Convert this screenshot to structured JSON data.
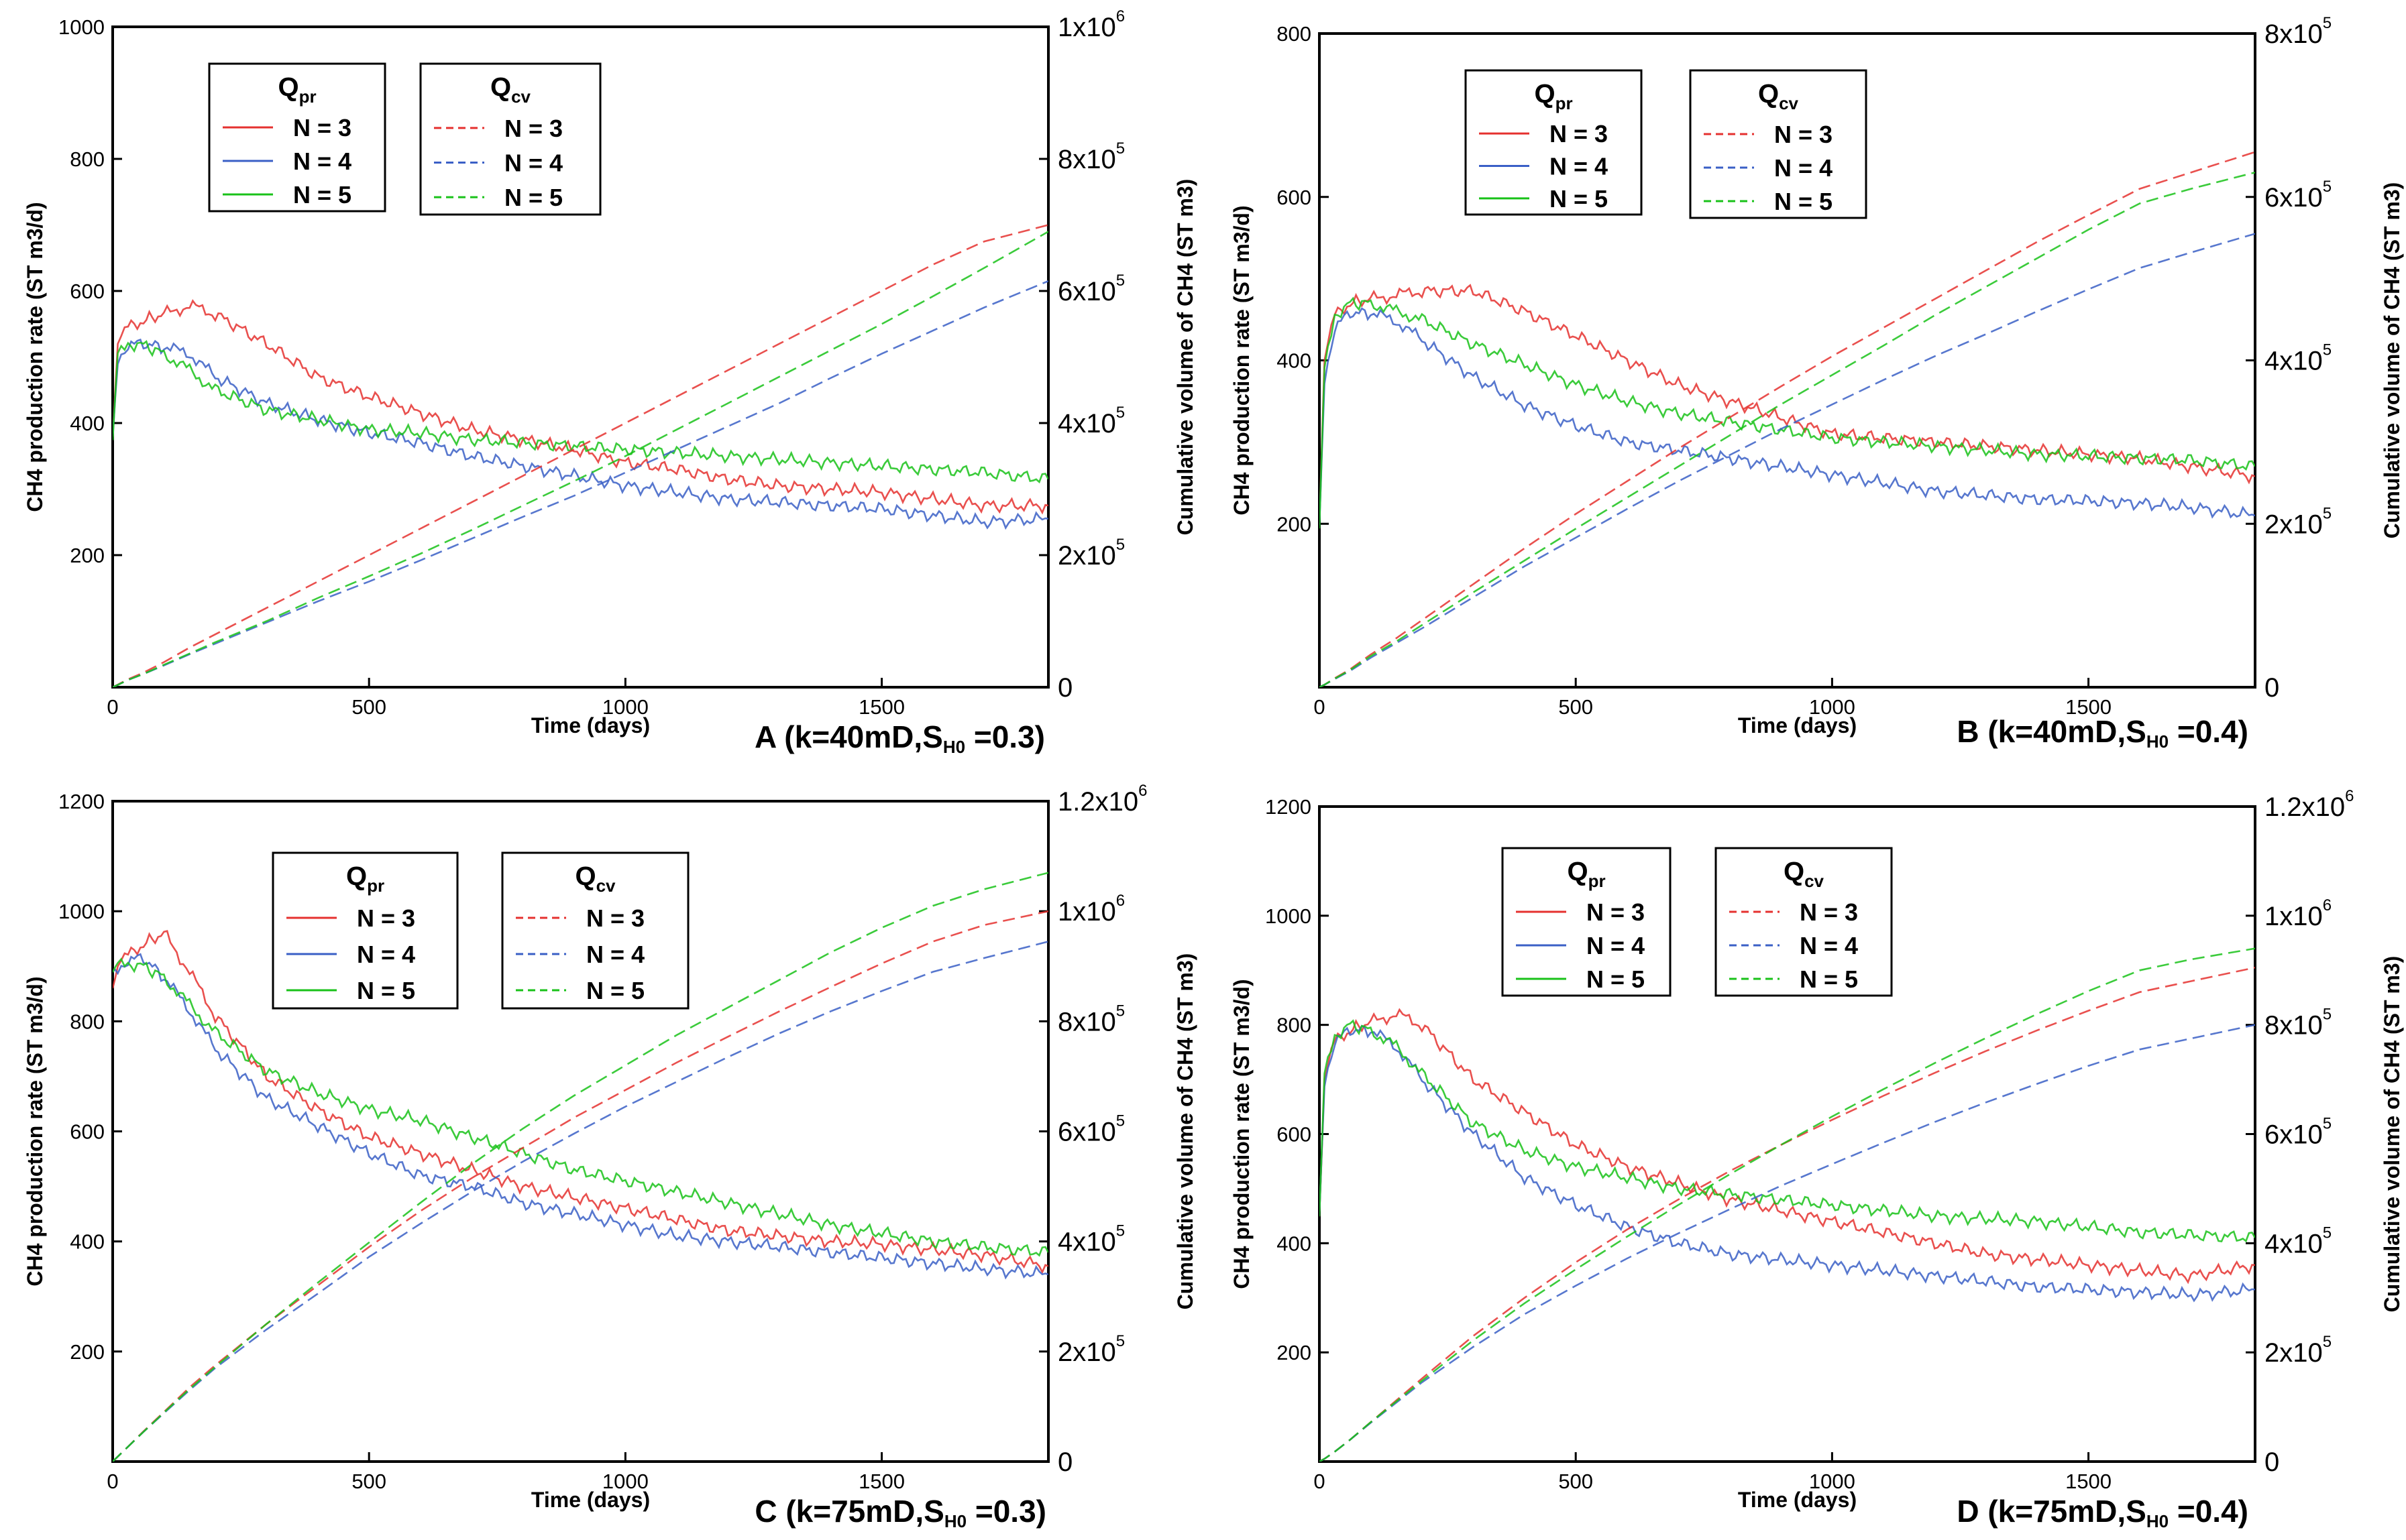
{
  "legend": {
    "qpr_title": "Q",
    "qpr_sub": "pr",
    "qcv_title": "Q",
    "qcv_sub": "cv",
    "entries": [
      "N = 3",
      "N = 4",
      "N = 5"
    ]
  },
  "colors": {
    "N3": "#e5312f",
    "N4": "#3a5fc6",
    "N5": "#19c219"
  },
  "chart_data": [
    {
      "id": "A",
      "type": "line",
      "caption": {
        "prefix": "A (k=40mD,S",
        "sub": "H0",
        "suffix": " =0.3)"
      },
      "xlabel": "Time (days)",
      "ylabel": "CH4 production rate (ST m3/d)",
      "y2label": "Cumulative volume of CH4 (ST m3)",
      "xlim": [
        0,
        1825
      ],
      "ylim": [
        0,
        1000
      ],
      "y2lim": [
        0,
        1000000
      ],
      "xticks": [
        "0",
        "500",
        "1000",
        "1500"
      ],
      "yticks": [
        "200",
        "400",
        "600",
        "800",
        "1000"
      ],
      "y2ticks": [
        {
          "base": "0",
          "exp": ""
        },
        {
          "base": "2x10",
          "exp": "5"
        },
        {
          "base": "4x10",
          "exp": "5"
        },
        {
          "base": "6x10",
          "exp": "5"
        },
        {
          "base": "8x10",
          "exp": "5"
        },
        {
          "base": "1x10",
          "exp": "6"
        }
      ],
      "x": [
        0,
        10,
        30,
        60,
        100,
        150,
        200,
        300,
        400,
        500,
        600,
        700,
        800,
        900,
        1000,
        1100,
        1200,
        1300,
        1400,
        1500,
        1600,
        1700,
        1825
      ],
      "rate_series": [
        {
          "name": "N = 3",
          "values": [
            380,
            520,
            545,
            555,
            565,
            578,
            565,
            520,
            470,
            440,
            415,
            390,
            375,
            360,
            340,
            330,
            315,
            305,
            300,
            295,
            285,
            275,
            275
          ]
        },
        {
          "name": "N = 4",
          "values": [
            370,
            500,
            518,
            520,
            515,
            505,
            470,
            430,
            405,
            385,
            370,
            350,
            335,
            320,
            305,
            295,
            285,
            280,
            275,
            270,
            260,
            250,
            255
          ]
        },
        {
          "name": "N = 5",
          "values": [
            375,
            505,
            520,
            518,
            505,
            480,
            450,
            420,
            405,
            390,
            385,
            375,
            370,
            365,
            360,
            355,
            350,
            345,
            340,
            335,
            330,
            325,
            315
          ]
        }
      ],
      "cum_series": [
        {
          "name": "N = 3",
          "values": [
            0,
            4000,
            12000,
            22000,
            38000,
            60000,
            80000,
            120000,
            160000,
            200000,
            240000,
            280000,
            320000,
            360000,
            400000,
            440000,
            480000,
            520000,
            560000,
            600000,
            640000,
            675000,
            700000
          ]
        },
        {
          "name": "N = 4",
          "values": [
            0,
            3500,
            11000,
            20000,
            33000,
            50000,
            66000,
            98000,
            130000,
            160000,
            192000,
            225000,
            258000,
            290000,
            325000,
            360000,
            395000,
            430000,
            468000,
            505000,
            540000,
            575000,
            615000
          ]
        },
        {
          "name": "N = 5",
          "values": [
            0,
            3500,
            11000,
            20000,
            34000,
            51000,
            68000,
            100000,
            135000,
            168000,
            202000,
            238000,
            275000,
            312000,
            350000,
            390000,
            430000,
            470000,
            510000,
            550000,
            592000,
            635000,
            690000
          ]
        }
      ]
    },
    {
      "id": "B",
      "type": "line",
      "caption": {
        "prefix": "B (k=40mD,S",
        "sub": "H0",
        "suffix": " =0.4)"
      },
      "xlabel": "Time (days)",
      "ylabel": "CH4 production rate (ST m3/d)",
      "y2label": "Cumulative volume of CH4 (ST m3)",
      "xlim": [
        0,
        1825
      ],
      "ylim": [
        0,
        800
      ],
      "y2lim": [
        0,
        800000
      ],
      "xticks": [
        "0",
        "500",
        "1000",
        "1500"
      ],
      "yticks": [
        "200",
        "400",
        "600",
        "800"
      ],
      "y2ticks": [
        {
          "base": "0",
          "exp": ""
        },
        {
          "base": "2x10",
          "exp": "5"
        },
        {
          "base": "4x10",
          "exp": "5"
        },
        {
          "base": "6x10",
          "exp": "5"
        },
        {
          "base": "8x10",
          "exp": "5"
        }
      ],
      "x": [
        0,
        10,
        30,
        60,
        100,
        150,
        200,
        300,
        400,
        500,
        600,
        700,
        800,
        900,
        1000,
        1100,
        1200,
        1300,
        1400,
        1500,
        1600,
        1700,
        1825
      ],
      "rate_series": [
        {
          "name": "N = 3",
          "values": [
            200,
            400,
            455,
            470,
            475,
            480,
            485,
            485,
            460,
            430,
            400,
            370,
            350,
            330,
            310,
            305,
            300,
            295,
            290,
            285,
            280,
            270,
            258
          ]
        },
        {
          "name": "N = 4",
          "values": [
            190,
            380,
            440,
            458,
            458,
            448,
            425,
            380,
            345,
            320,
            300,
            290,
            280,
            270,
            260,
            250,
            240,
            235,
            230,
            228,
            225,
            220,
            210
          ]
        },
        {
          "name": "N = 5",
          "values": [
            195,
            390,
            455,
            470,
            470,
            460,
            450,
            420,
            395,
            370,
            350,
            335,
            325,
            315,
            305,
            300,
            295,
            290,
            285,
            283,
            280,
            278,
            270
          ]
        }
      ],
      "cum_series": [
        {
          "name": "N = 3",
          "values": [
            0,
            3000,
            11000,
            22000,
            40000,
            60000,
            82000,
            126000,
            170000,
            212000,
            252000,
            292000,
            330000,
            368000,
            405000,
            440000,
            475000,
            510000,
            545000,
            578000,
            610000,
            630000,
            655000
          ]
        },
        {
          "name": "N = 4",
          "values": [
            0,
            3000,
            10000,
            20000,
            36000,
            54000,
            72000,
            110000,
            148000,
            183000,
            218000,
            252000,
            284000,
            316000,
            346000,
            376000,
            405000,
            432000,
            460000,
            487000,
            513000,
            532000,
            555000
          ]
        },
        {
          "name": "N = 5",
          "values": [
            0,
            3000,
            10500,
            21000,
            38000,
            56000,
            76000,
            116000,
            155000,
            194000,
            232000,
            270000,
            308000,
            346000,
            382000,
            418000,
            455000,
            490000,
            525000,
            560000,
            592000,
            610000,
            630000
          ]
        }
      ]
    },
    {
      "id": "C",
      "type": "line",
      "caption": {
        "prefix": "C (k=75mD,S",
        "sub": "H0",
        "suffix": " =0.3)"
      },
      "xlabel": "Time (days)",
      "ylabel": "CH4 production rate (ST m3/d)",
      "y2label": "Cumulative volume of CH4 (ST m3)",
      "xlim": [
        0,
        1825
      ],
      "ylim": [
        0,
        1200
      ],
      "y2lim": [
        0,
        1200000
      ],
      "xticks": [
        "0",
        "500",
        "1000",
        "1500"
      ],
      "yticks": [
        "200",
        "400",
        "600",
        "800",
        "1000",
        "1200"
      ],
      "y2ticks": [
        {
          "base": "0",
          "exp": ""
        },
        {
          "base": "2x10",
          "exp": "5"
        },
        {
          "base": "4x10",
          "exp": "5"
        },
        {
          "base": "6x10",
          "exp": "5"
        },
        {
          "base": "8x10",
          "exp": "5"
        },
        {
          "base": "1x10",
          "exp": "6"
        },
        {
          "base": "1.2x10",
          "exp": "6"
        }
      ],
      "x": [
        0,
        10,
        30,
        60,
        100,
        150,
        200,
        300,
        400,
        500,
        600,
        700,
        800,
        900,
        1000,
        1100,
        1200,
        1300,
        1400,
        1500,
        1600,
        1700,
        1825
      ],
      "rate_series": [
        {
          "name": "N = 3",
          "values": [
            860,
            900,
            920,
            940,
            960,
            890,
            810,
            700,
            640,
            590,
            560,
            530,
            500,
            480,
            460,
            440,
            420,
            410,
            400,
            395,
            385,
            375,
            355
          ]
        },
        {
          "name": "N = 4",
          "values": [
            880,
            900,
            910,
            915,
            880,
            820,
            750,
            660,
            610,
            560,
            520,
            500,
            470,
            450,
            430,
            410,
            400,
            390,
            380,
            370,
            360,
            350,
            340
          ]
        },
        {
          "name": "N = 5",
          "values": [
            890,
            905,
            905,
            900,
            880,
            830,
            780,
            710,
            670,
            640,
            620,
            590,
            560,
            530,
            510,
            490,
            470,
            450,
            430,
            415,
            400,
            390,
            380
          ]
        }
      ],
      "cum_series": [
        {
          "name": "N = 3",
          "values": [
            0,
            9000,
            27000,
            55000,
            90000,
            135000,
            175000,
            250000,
            320000,
            390000,
            455000,
            515000,
            570000,
            625000,
            675000,
            725000,
            772000,
            818000,
            862000,
            905000,
            945000,
            975000,
            1000000
          ]
        },
        {
          "name": "N = 4",
          "values": [
            0,
            9000,
            27000,
            54000,
            88000,
            130000,
            170000,
            240000,
            305000,
            372000,
            432000,
            490000,
            545000,
            596000,
            645000,
            690000,
            735000,
            778000,
            818000,
            855000,
            890000,
            915000,
            945000
          ]
        },
        {
          "name": "N = 5",
          "values": [
            0,
            9000,
            27000,
            54000,
            89000,
            132000,
            172000,
            250000,
            325000,
            398000,
            470000,
            540000,
            605000,
            665000,
            720000,
            775000,
            825000,
            875000,
            925000,
            970000,
            1010000,
            1040000,
            1070000
          ]
        }
      ]
    },
    {
      "id": "D",
      "type": "line",
      "caption": {
        "prefix": "D (k=75mD,S",
        "sub": "H0",
        "suffix": " =0.4)"
      },
      "xlabel": "Time (days)",
      "ylabel": "CH4 production rate (ST m3/d)",
      "y2label": "Cumulative volume of CH4 (ST m3)",
      "xlim": [
        0,
        1825
      ],
      "ylim": [
        0,
        1200
      ],
      "y2lim": [
        0,
        1200000
      ],
      "xticks": [
        "0",
        "500",
        "1000",
        "1500"
      ],
      "yticks": [
        "200",
        "400",
        "600",
        "800",
        "1000",
        "1200"
      ],
      "y2ticks": [
        {
          "base": "0",
          "exp": ""
        },
        {
          "base": "2x10",
          "exp": "5"
        },
        {
          "base": "4x10",
          "exp": "5"
        },
        {
          "base": "6x10",
          "exp": "5"
        },
        {
          "base": "8x10",
          "exp": "5"
        },
        {
          "base": "1x10",
          "exp": "6"
        },
        {
          "base": "1.2x10",
          "exp": "6"
        }
      ],
      "x": [
        0,
        10,
        30,
        60,
        100,
        150,
        200,
        300,
        400,
        500,
        600,
        700,
        800,
        900,
        1000,
        1100,
        1200,
        1300,
        1400,
        1500,
        1600,
        1700,
        1825
      ],
      "rate_series": [
        {
          "name": "N = 3",
          "values": [
            450,
            700,
            770,
            790,
            805,
            820,
            800,
            700,
            640,
            580,
            540,
            510,
            480,
            460,
            440,
            420,
            400,
            380,
            370,
            360,
            350,
            340,
            360
          ]
        },
        {
          "name": "N = 4",
          "values": [
            440,
            700,
            770,
            790,
            790,
            760,
            700,
            600,
            520,
            470,
            430,
            400,
            380,
            370,
            360,
            350,
            340,
            330,
            320,
            315,
            310,
            305,
            315
          ]
        },
        {
          "name": "N = 5",
          "values": [
            450,
            710,
            780,
            800,
            790,
            760,
            710,
            620,
            570,
            540,
            520,
            500,
            490,
            480,
            470,
            460,
            450,
            445,
            440,
            430,
            420,
            415,
            410
          ]
        }
      ],
      "cum_series": [
        {
          "name": "N = 3",
          "values": [
            0,
            5000,
            18000,
            40000,
            72000,
            112000,
            152000,
            230000,
            300000,
            365000,
            425000,
            480000,
            532000,
            580000,
            626000,
            670000,
            712000,
            752000,
            790000,
            826000,
            860000,
            880000,
            905000
          ]
        },
        {
          "name": "N = 4",
          "values": [
            0,
            5000,
            18000,
            40000,
            71000,
            108000,
            145000,
            210000,
            270000,
            322000,
            372000,
            418000,
            462000,
            505000,
            545000,
            584000,
            622000,
            658000,
            692000,
            725000,
            755000,
            775000,
            800000
          ]
        },
        {
          "name": "N = 5",
          "values": [
            0,
            5000,
            18000,
            40000,
            72000,
            110000,
            148000,
            222000,
            290000,
            352000,
            412000,
            470000,
            526000,
            580000,
            632000,
            682000,
            730000,
            776000,
            820000,
            862000,
            900000,
            920000,
            940000
          ]
        }
      ]
    }
  ]
}
